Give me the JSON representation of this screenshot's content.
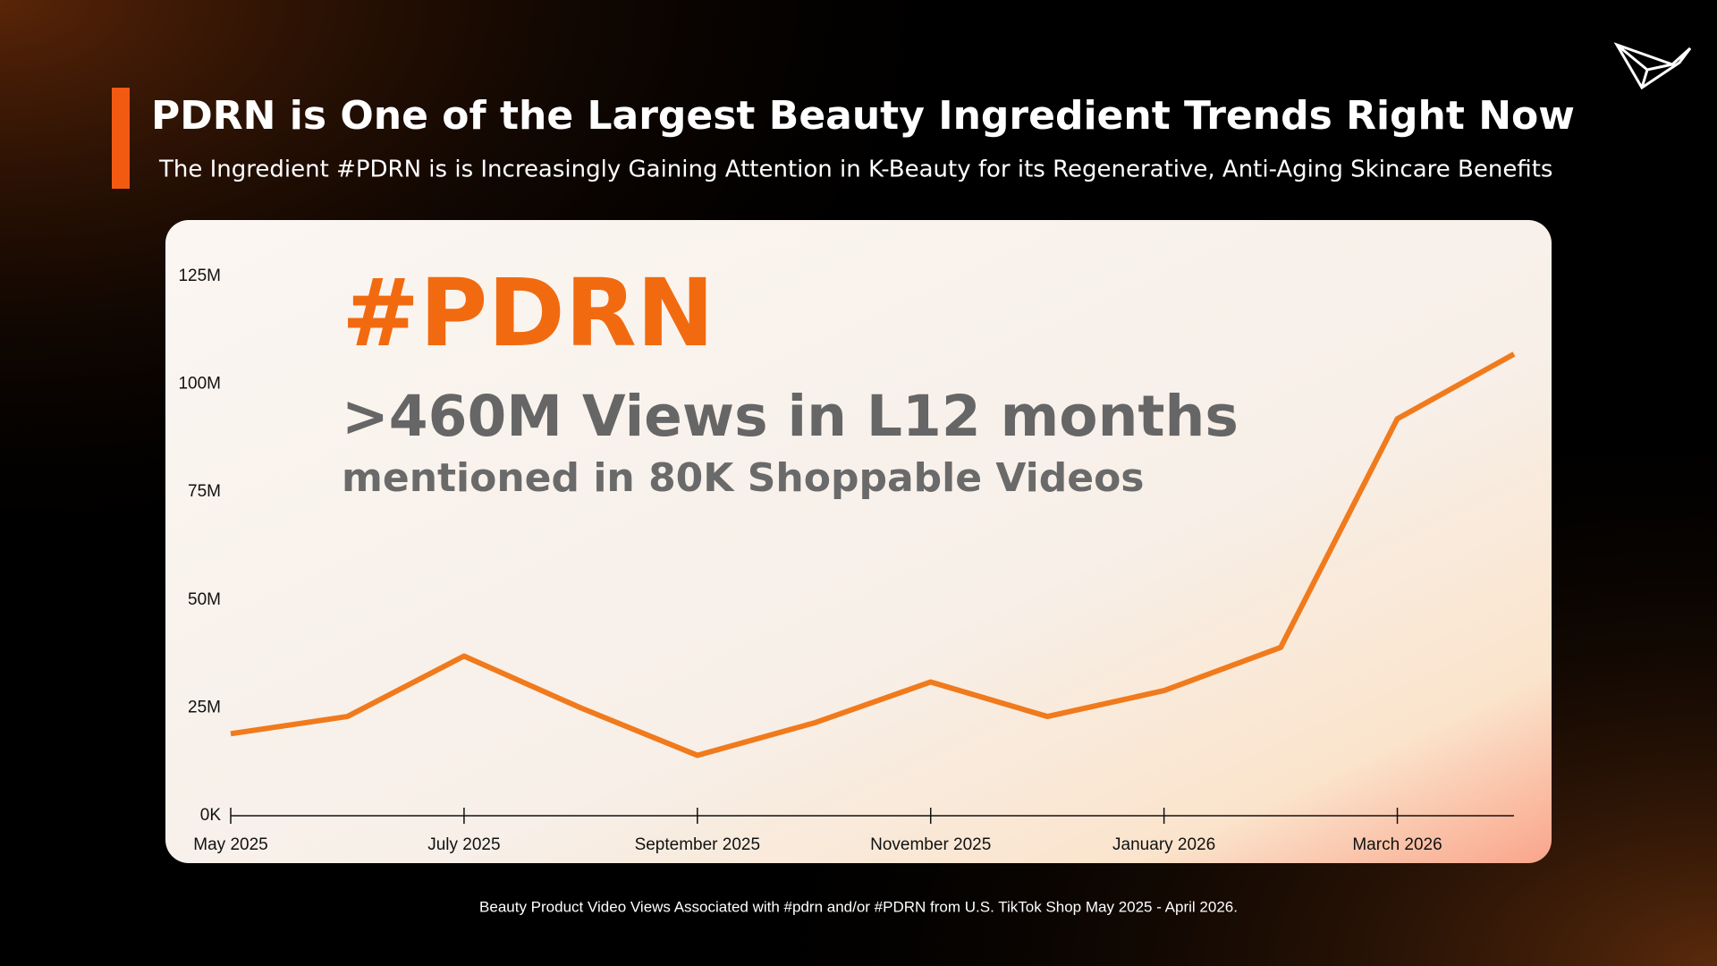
{
  "header": {
    "title": "PDRN is One of the Largest Beauty Ingredient Trends Right Now",
    "subtitle": "The Ingredient #PDRN is is Increasingly Gaining Attention in K-Beauty for its Regenerative, Anti-Aging Skincare Benefits"
  },
  "callouts": {
    "hashtag": "#PDRN",
    "views": ">460M Views in L12 months",
    "videos": "mentioned in 80K Shoppable Videos"
  },
  "footnote": "Beauty Product Video Views Associated with #pdrn and/or #PDRN  from U.S. TikTok Shop May 2025 - April 2026.",
  "chart_data": {
    "type": "line",
    "categories": [
      "May 2025",
      null,
      "July 2025",
      null,
      "September 2025",
      null,
      "November 2025",
      null,
      "January 2026",
      null,
      "March 2026",
      null
    ],
    "values": [
      19,
      23,
      37,
      25,
      14,
      21.5,
      31,
      23,
      29,
      39,
      92,
      107
    ],
    "color": "#f07a1c",
    "ylim": [
      0,
      125
    ],
    "yticks": [
      {
        "value": 0,
        "label": "0K"
      },
      {
        "value": 25,
        "label": "25M"
      },
      {
        "value": 50,
        "label": "50M"
      },
      {
        "value": 75,
        "label": "75M"
      },
      {
        "value": 100,
        "label": "100M"
      },
      {
        "value": 125,
        "label": "125M"
      }
    ],
    "grid": false
  }
}
